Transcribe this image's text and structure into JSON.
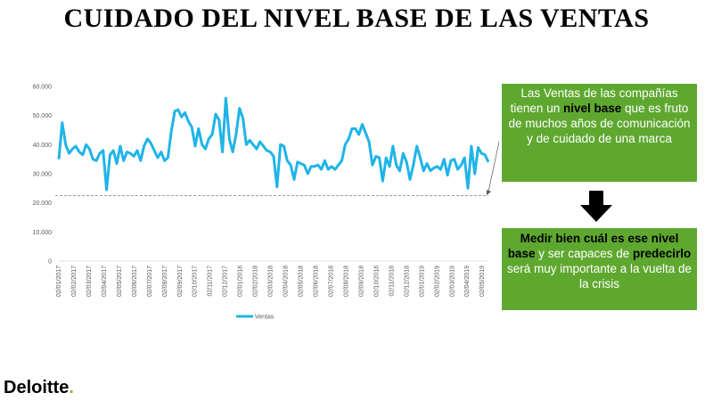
{
  "title": "CUIDADO DEL NIVEL BASE DE LAS VENTAS",
  "callout_top": {
    "segments": [
      {
        "text": "Las Ventas de las compañías tienen un ",
        "bold": false
      },
      {
        "text": "nivel base",
        "bold": true
      },
      {
        "text": " que es fruto de muchos años de comunicación y de cuidado de una marca",
        "bold": false
      }
    ]
  },
  "callout_bottom": {
    "segments": [
      {
        "text": "Medir bien cuál es ese nivel base",
        "bold": true
      },
      {
        "text": " y ser capaces de ",
        "bold": false
      },
      {
        "text": "predecirlo",
        "bold": true
      },
      {
        "text": " será muy importante a la vuelta de la crisis",
        "bold": false
      }
    ]
  },
  "logo": {
    "text": "Deloitte",
    "dot": "."
  },
  "colors": {
    "series": "#1fb4e8",
    "callout_bg": "#5fa830",
    "logo_dot": "#86bc25",
    "baseline": "#7f7f7f"
  },
  "chart_data": {
    "type": "line",
    "title": "",
    "xlabel": "",
    "ylabel": "",
    "ylim": [
      0,
      60000
    ],
    "yticks": [
      "0",
      "10.000",
      "20.000",
      "30.000",
      "40.000",
      "50.000",
      "60.000"
    ],
    "ytick_values": [
      0,
      10000,
      20000,
      30000,
      40000,
      50000,
      60000
    ],
    "x_ticks": [
      "02/01/2017",
      "02/02/2017",
      "02/03/2017",
      "02/04/2017",
      "02/05/2017",
      "02/06/2017",
      "02/07/2017",
      "02/08/2017",
      "02/09/2017",
      "02/10/2017",
      "02/11/2017",
      "02/12/2017",
      "02/01/2018",
      "02/02/2018",
      "02/03/2018",
      "02/04/2018",
      "02/05/2018",
      "02/06/2018",
      "02/07/2018",
      "02/08/2018",
      "02/09/2018",
      "02/10/2018",
      "02/11/2018",
      "02/12/2018",
      "02/01/2019",
      "02/02/2019",
      "02/03/2019",
      "02/04/2019",
      "02/05/2019"
    ],
    "grid": false,
    "legend_position": "bottom",
    "baseline_value": 22500,
    "series": [
      {
        "name": "Ventas",
        "values": [
          35000,
          47500,
          40000,
          37000,
          38500,
          39500,
          37500,
          36500,
          40000,
          38500,
          35000,
          34500,
          37000,
          38000,
          24500,
          36500,
          38000,
          33500,
          39500,
          34500,
          37500,
          37000,
          36000,
          38000,
          34500,
          39500,
          42000,
          40500,
          38000,
          35500,
          37500,
          34500,
          35500,
          44500,
          51500,
          52000,
          49500,
          51000,
          48000,
          46000,
          39500,
          45500,
          40000,
          38500,
          42000,
          43500,
          50500,
          48500,
          37500,
          56000,
          42000,
          37500,
          43500,
          52500,
          49000,
          40000,
          41500,
          40000,
          38500,
          41000,
          39500,
          38000,
          37500,
          36000,
          25500,
          40000,
          39500,
          34500,
          33000,
          28000,
          34000,
          33500,
          33000,
          30000,
          32500,
          32500,
          33000,
          31500,
          34500,
          31500,
          32500,
          31500,
          33000,
          34500,
          40000,
          42000,
          45500,
          45500,
          43500,
          47000,
          44000,
          41000,
          33000,
          36000,
          35500,
          27500,
          35500,
          32500,
          39500,
          33000,
          31000,
          37000,
          34000,
          28000,
          33000,
          39500,
          35500,
          31000,
          33500,
          31000,
          32000,
          32500,
          31500,
          35000,
          29500,
          34500,
          35000,
          31500,
          33000,
          35500,
          25000,
          39500,
          30000,
          39000,
          37000,
          36500,
          34000
        ]
      }
    ]
  }
}
